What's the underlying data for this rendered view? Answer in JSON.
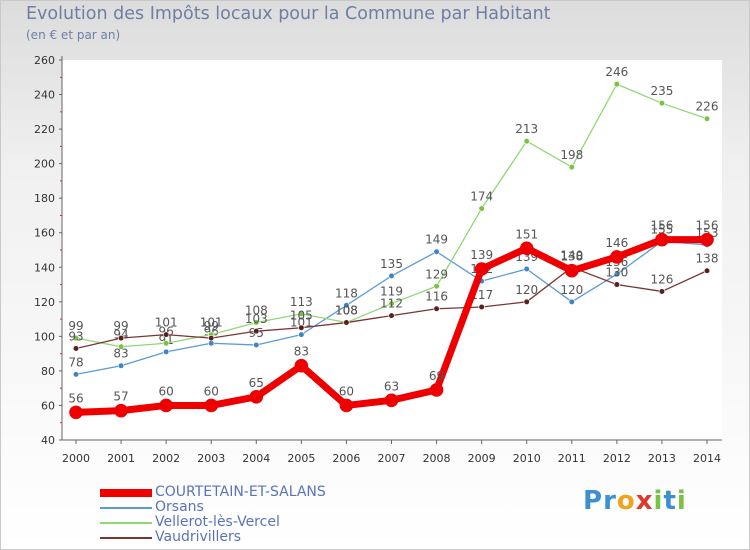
{
  "header": {
    "title": "Evolution des Impôts locaux pour la Commune par Habitant",
    "subtitle": "(en € et par an)"
  },
  "logo": {
    "letters": [
      "P",
      "r",
      "o",
      "x",
      "i",
      "t",
      "i"
    ],
    "colors": [
      "#3d8fd1",
      "#3d8fd1",
      "#f2a21a",
      "#e2372c",
      "#7cc242",
      "#3d8fd1",
      "#7cc242"
    ]
  },
  "chart_data": {
    "type": "line",
    "title": "Evolution des Impôts locaux pour la Commune par Habitant",
    "subtitle": "(en € et par an)",
    "xlabel": "",
    "ylabel": "",
    "ylim": [
      40,
      260
    ],
    "yticks": [
      40,
      60,
      80,
      100,
      120,
      140,
      160,
      180,
      200,
      220,
      240,
      260
    ],
    "grid": false,
    "legend_position": "bottom-left",
    "categories": [
      "2000",
      "2001",
      "2002",
      "2003",
      "2004",
      "2005",
      "2006",
      "2007",
      "2008",
      "2009",
      "2010",
      "2011",
      "2012",
      "2013",
      "2014"
    ],
    "series": [
      {
        "name": "Orsans",
        "color": "#5a9bd5",
        "markerFill": "#3f83c8",
        "width": 1.3,
        "marker": 2.8,
        "values": [
          78,
          83,
          91,
          96,
          95,
          101,
          118,
          135,
          149,
          132,
          139,
          120,
          136,
          155,
          153
        ],
        "labels": [
          "78",
          "83",
          "91",
          "96",
          "95",
          "101",
          "118",
          "135",
          "149",
          "132",
          "139",
          "120",
          "136",
          "155",
          "153"
        ]
      },
      {
        "name": "Vellerot-lès-Vercel",
        "color": "#90d775",
        "markerFill": "#7cc242",
        "width": 1.3,
        "marker": 2.8,
        "values": [
          99,
          94,
          96,
          101,
          108,
          113,
          108,
          119,
          129,
          174,
          213,
          198,
          246,
          235,
          226
        ],
        "labels": [
          "99",
          "94",
          "96",
          "101",
          "108",
          "113",
          "108",
          "119",
          "129",
          "174",
          "213",
          "198",
          "246",
          "235",
          "226"
        ]
      },
      {
        "name": "Vaudrivillers",
        "color": "#7a3535",
        "markerFill": "#5a1f1f",
        "width": 1.3,
        "marker": 2.8,
        "values": [
          93,
          99,
          101,
          99,
          103,
          105,
          108,
          112,
          116,
          117,
          120,
          140,
          130,
          126,
          138
        ],
        "labels": [
          "93",
          "99",
          "101",
          "99",
          "103",
          "105",
          "108",
          "112",
          "116",
          "117",
          "120",
          "140",
          "130",
          "126",
          "138"
        ]
      },
      {
        "name": "COURTETAIN-ET-SALANS",
        "color": "#ee0000",
        "markerFill": "#ee0000",
        "width": 7,
        "marker": 6.5,
        "values": [
          56,
          57,
          60,
          60,
          65,
          83,
          60,
          63,
          69,
          139,
          151,
          138,
          146,
          156,
          156
        ],
        "labels": [
          "56",
          "57",
          "60",
          "60",
          "65",
          "83",
          "60",
          "63",
          "69",
          "139",
          "151",
          "138",
          "146",
          "156",
          "156"
        ]
      }
    ]
  },
  "legend": {
    "items": [
      {
        "label": "COURTETAIN-ET-SALANS",
        "color": "#ee0000",
        "thickness": 8
      },
      {
        "label": "Orsans",
        "color": "#5a9bd5",
        "thickness": 2
      },
      {
        "label": "Vellerot-lès-Vercel",
        "color": "#90d775",
        "thickness": 2
      },
      {
        "label": "Vaudrivillers",
        "color": "#7a3535",
        "thickness": 2
      }
    ]
  }
}
